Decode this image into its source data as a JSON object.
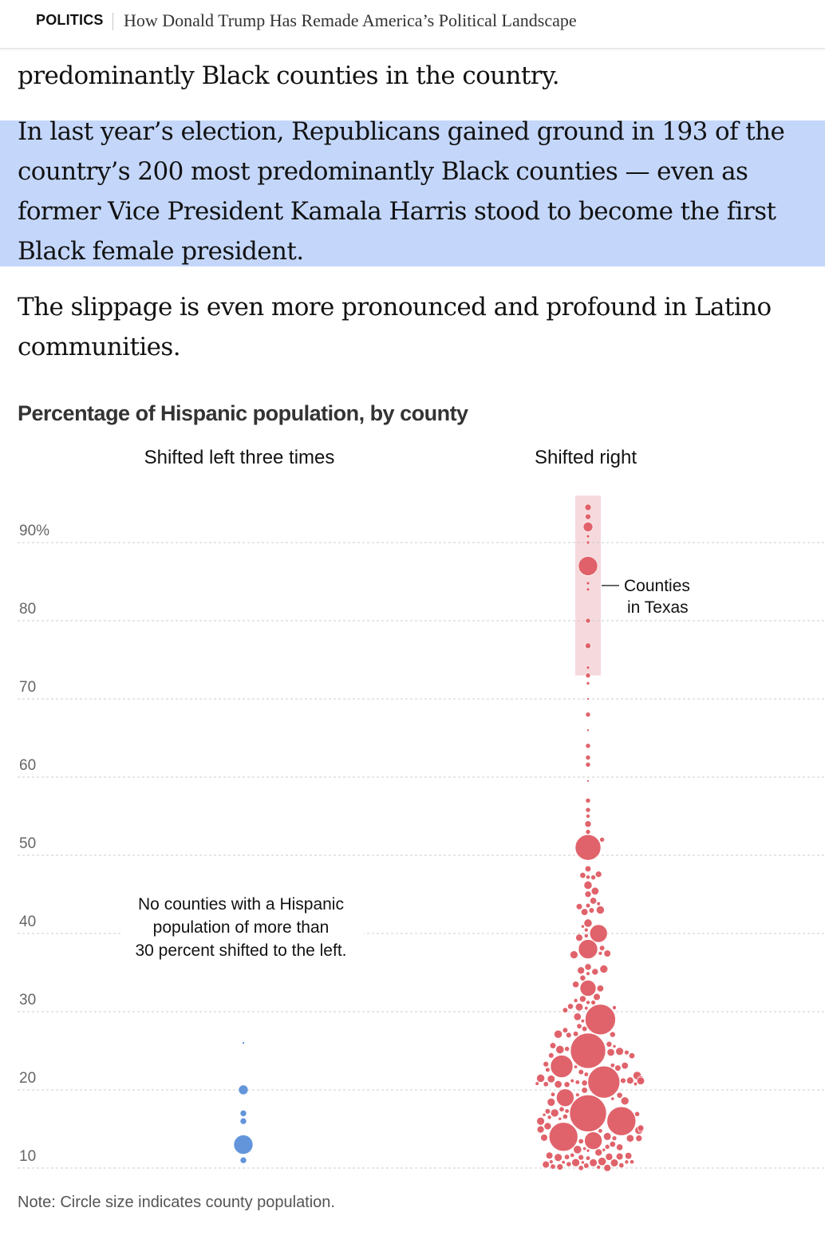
{
  "header": {
    "section": "POLITICS",
    "headline": "How Donald Trump Has Remade America’s Political Landscape"
  },
  "article": {
    "paragraph_1": "predominantly Black counties in the country.",
    "paragraph_2": "In last year’s election, Republicans gained ground in 193 of the country’s 200 most predominantly Black counties — even as former Vice President Kamala Harris stood to become the first Black female president.",
    "paragraph_3": "The slippage is even more pronounced and profound in Latino communities."
  },
  "colors": {
    "left": "#5b8fd9",
    "right": "#de5b63",
    "highlight": "#c4d7fb",
    "texas_band": "#f6d9dc",
    "grid": "#cccccc"
  },
  "chart_data": {
    "type": "scatter",
    "subtype": "beeswarm",
    "title": "Percentage of Hispanic population, by county",
    "ylabel": "",
    "ylim": [
      8,
      97
    ],
    "y_ticks": [
      90,
      80,
      70,
      60,
      50,
      40,
      30,
      20,
      10
    ],
    "y_tick_labels": [
      "90%",
      "80",
      "70",
      "60",
      "50",
      "40",
      "30",
      "20",
      "10"
    ],
    "grid": true,
    "series": [
      {
        "name": "Shifted left three times",
        "points": [
          {
            "y": 26,
            "size": 1.5
          },
          {
            "y": 20,
            "size": 6
          },
          {
            "y": 17,
            "size": 4
          },
          {
            "y": 16,
            "size": 4
          },
          {
            "y": 13,
            "size": 12
          },
          {
            "y": 11,
            "size": 4
          }
        ]
      },
      {
        "name": "Shifted right",
        "points": [
          {
            "y": 94.5,
            "size": 4
          },
          {
            "y": 93.3,
            "size": 3.5
          },
          {
            "y": 92,
            "size": 6
          },
          {
            "y": 90.8,
            "size": 2
          },
          {
            "y": 90,
            "size": 2
          },
          {
            "y": 87,
            "size": 12
          },
          {
            "y": 84.8,
            "size": 2
          },
          {
            "y": 84,
            "size": 2
          },
          {
            "y": 80,
            "size": 3
          },
          {
            "y": 76.8,
            "size": 3.5
          },
          {
            "y": 74,
            "size": 2
          },
          {
            "y": 73,
            "size": 3
          },
          {
            "y": 72,
            "size": 2
          },
          {
            "y": 70,
            "size": 1.5
          },
          {
            "y": 68,
            "size": 3
          },
          {
            "y": 66,
            "size": 1.5
          },
          {
            "y": 64,
            "size": 3
          },
          {
            "y": 62.5,
            "size": 3
          },
          {
            "y": 61.6,
            "size": 3
          },
          {
            "y": 59.5,
            "size": 1.5
          },
          {
            "y": 57,
            "size": 3
          },
          {
            "y": 55.8,
            "size": 3
          },
          {
            "y": 55,
            "size": 2.5
          },
          {
            "y": 54,
            "size": 4
          },
          {
            "y": 53,
            "size": 3
          },
          {
            "y": 52,
            "size": 3
          },
          {
            "y": 51,
            "size": 16
          },
          {
            "y": 40,
            "size": 11
          },
          {
            "y": 38,
            "size": 12
          },
          {
            "y": 33,
            "size": 10
          },
          {
            "y": 29,
            "size": 19
          },
          {
            "y": 25,
            "size": 22
          },
          {
            "y": 23,
            "size": 14
          },
          {
            "y": 21,
            "size": 20
          },
          {
            "y": 19,
            "size": 11
          },
          {
            "y": 17,
            "size": 23
          },
          {
            "y": 16,
            "size": 18
          },
          {
            "y": 14,
            "size": 18
          },
          {
            "y": 13.5,
            "size": 11
          }
        ],
        "summary_note": "A dense cluster of many small counties spans roughly 10–50 percent."
      }
    ],
    "annotations": [
      {
        "text": [
          "Counties",
          "in Texas"
        ],
        "y_range": [
          73,
          96
        ],
        "series": "Shifted right"
      },
      {
        "text": [
          "No counties with a Hispanic",
          "population of more than",
          "30 percent shifted to the left."
        ],
        "series": "Shifted left three times"
      }
    ],
    "note": "Note: Circle size indicates county population."
  }
}
